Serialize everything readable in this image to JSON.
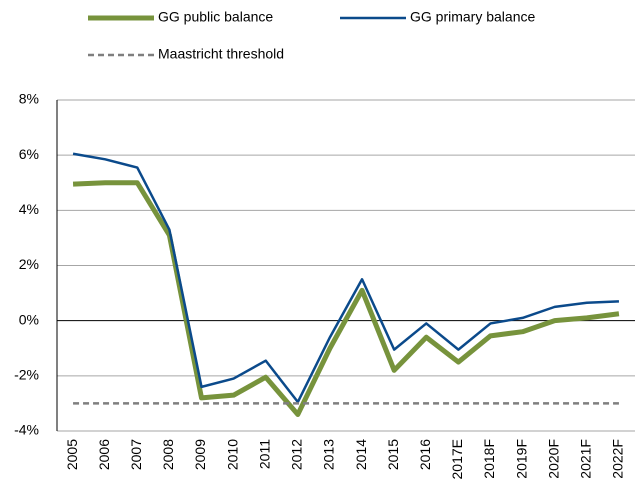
{
  "chart_data": {
    "type": "line",
    "categories": [
      "2005",
      "2006",
      "2007",
      "2008",
      "2009",
      "2010",
      "2011",
      "2012",
      "2013",
      "2014",
      "2015",
      "2016",
      "2017E",
      "2018F",
      "2019F",
      "2020F",
      "2021F",
      "2022F"
    ],
    "series": [
      {
        "name": "GG public balance",
        "color": "#77933c",
        "width": 5,
        "dash": false,
        "values": [
          4.95,
          5.0,
          5.0,
          3.1,
          -2.8,
          -2.7,
          -2.05,
          -3.4,
          -1.0,
          1.1,
          -1.8,
          -0.6,
          -1.5,
          -0.55,
          -0.4,
          0.0,
          0.1,
          0.25
        ]
      },
      {
        "name": "GG primary balance",
        "color": "#0b4a8b",
        "width": 2.5,
        "dash": false,
        "values": [
          6.05,
          5.85,
          5.55,
          3.3,
          -2.4,
          -2.1,
          -1.45,
          -2.95,
          -0.6,
          1.5,
          -1.05,
          -0.1,
          -1.05,
          -0.1,
          0.1,
          0.5,
          0.65,
          0.7
        ]
      },
      {
        "name": "Maastricht threshold",
        "color": "#7f7f7f",
        "width": 2.5,
        "dash": true,
        "values": [
          -3,
          -3,
          -3,
          -3,
          -3,
          -3,
          -3,
          -3,
          -3,
          -3,
          -3,
          -3,
          -3,
          -3,
          -3,
          -3,
          -3,
          -3
        ]
      }
    ],
    "ylim": [
      -4,
      8
    ],
    "yticks": [
      {
        "value": -4,
        "label": "-4%"
      },
      {
        "value": -2,
        "label": "-2%"
      },
      {
        "value": 0,
        "label": "0%"
      },
      {
        "value": 2,
        "label": "2%"
      },
      {
        "value": 4,
        "label": "4%"
      },
      {
        "value": 6,
        "label": "6%"
      },
      {
        "value": 8,
        "label": "8%"
      }
    ],
    "grid": true
  }
}
